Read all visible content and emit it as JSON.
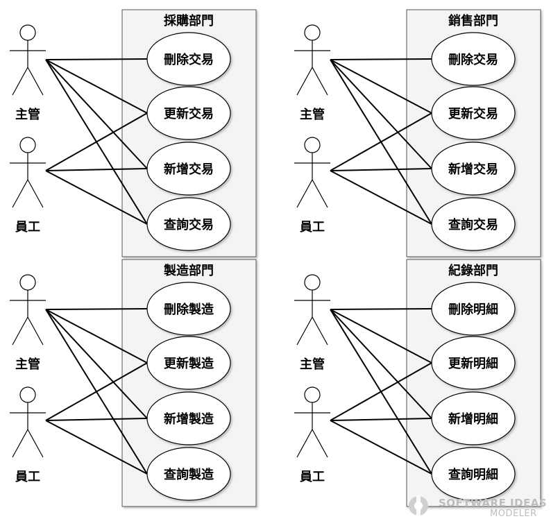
{
  "diagram": {
    "type": "uml-use-case",
    "systems": [
      {
        "title": "採購部門",
        "actors": [
          "主管",
          "員工"
        ],
        "use_cases": [
          "刪除交易",
          "更新交易",
          "新增交易",
          "查詢交易"
        ]
      },
      {
        "title": "銷售部門",
        "actors": [
          "主管",
          "員工"
        ],
        "use_cases": [
          "刪除交易",
          "更新交易",
          "新增交易",
          "查詢交易"
        ]
      },
      {
        "title": "製造部門",
        "actors": [
          "主管",
          "員工"
        ],
        "use_cases": [
          "刪除製造",
          "更新製造",
          "新增製造",
          "查詢製造"
        ]
      },
      {
        "title": "紀錄部門",
        "actors": [
          "主管",
          "員工"
        ],
        "use_cases": [
          "刪除明細",
          "更新明細",
          "新增明細",
          "查詢明細"
        ]
      }
    ],
    "associations": {
      "manager_to_use_cases": [
        0,
        1,
        2,
        3
      ],
      "employee_to_use_cases": [
        1,
        2,
        3
      ]
    }
  },
  "watermark": {
    "line1": "SOFTWARE IDEAS",
    "line2": "MODELER"
  },
  "colors": {
    "boundary_fill": "#f4f4f4",
    "boundary_stroke": "#555555",
    "usecase_fill": "#ffffff",
    "line": "#000000",
    "watermark": "#bdbdbd"
  }
}
